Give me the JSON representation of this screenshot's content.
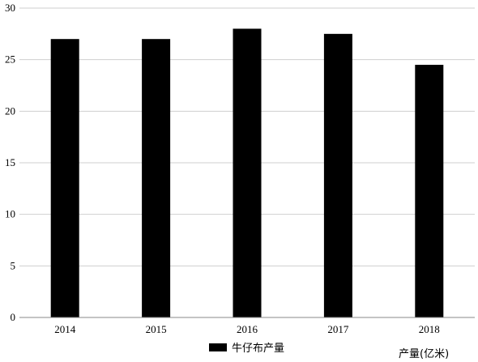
{
  "chart_data": {
    "type": "bar",
    "categories": [
      "2014",
      "2015",
      "2016",
      "2017",
      "2018"
    ],
    "series": [
      {
        "name": "牛仔布产量",
        "values": [
          27,
          27,
          28,
          27.5,
          24.5
        ],
        "color": "#000000"
      }
    ],
    "ylim": [
      0,
      30
    ],
    "yticks": [
      0,
      5,
      10,
      15,
      20,
      25,
      30
    ],
    "grid": true,
    "legend_position": "bottom",
    "unit_label": "产量(亿米)"
  }
}
